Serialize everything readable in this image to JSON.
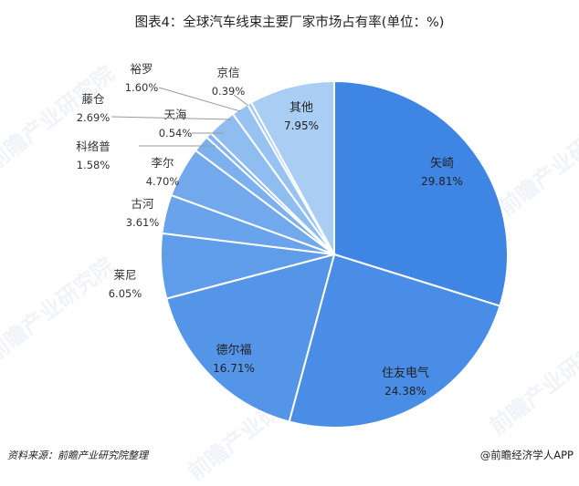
{
  "title": "图表4：全球汽车线束主要厂家市场占有率(单位：%)",
  "source": "资料来源：前瞻产业研究院整理",
  "brand": "@前瞻经济学人APP",
  "watermark": "前瞻产业研究院",
  "chart_data": {
    "type": "pie",
    "title": "图表4：全球汽车线束主要厂家市场占有率(单位：%)",
    "unit": "%",
    "slices": [
      {
        "name": "矢崎",
        "value": 29.81,
        "label": "29.81%",
        "color": "#3f86e4"
      },
      {
        "name": "住友电气",
        "value": 24.38,
        "label": "24.38%",
        "color": "#4a8de6"
      },
      {
        "name": "德尔福",
        "value": 16.71,
        "label": "16.71%",
        "color": "#5595e8"
      },
      {
        "name": "莱尼",
        "value": 6.05,
        "label": "6.05%",
        "color": "#5f9cea"
      },
      {
        "name": "古河",
        "value": 3.61,
        "label": "3.61%",
        "color": "#69a3eb"
      },
      {
        "name": "李尔",
        "value": 4.7,
        "label": "4.70%",
        "color": "#72a9ec"
      },
      {
        "name": "科络普",
        "value": 1.58,
        "label": "1.58%",
        "color": "#7cb0ee"
      },
      {
        "name": "天海",
        "value": 0.54,
        "label": "0.54%",
        "color": "#86b6ef"
      },
      {
        "name": "藤仓",
        "value": 2.69,
        "label": "2.69%",
        "color": "#8fbdf0"
      },
      {
        "name": "裕罗",
        "value": 1.6,
        "label": "1.60%",
        "color": "#98c2f1"
      },
      {
        "name": "京信",
        "value": 0.39,
        "label": "0.39%",
        "color": "#a1c8f2"
      },
      {
        "name": "其他",
        "value": 7.95,
        "label": "7.95%",
        "color": "#a9cdf3"
      }
    ]
  }
}
